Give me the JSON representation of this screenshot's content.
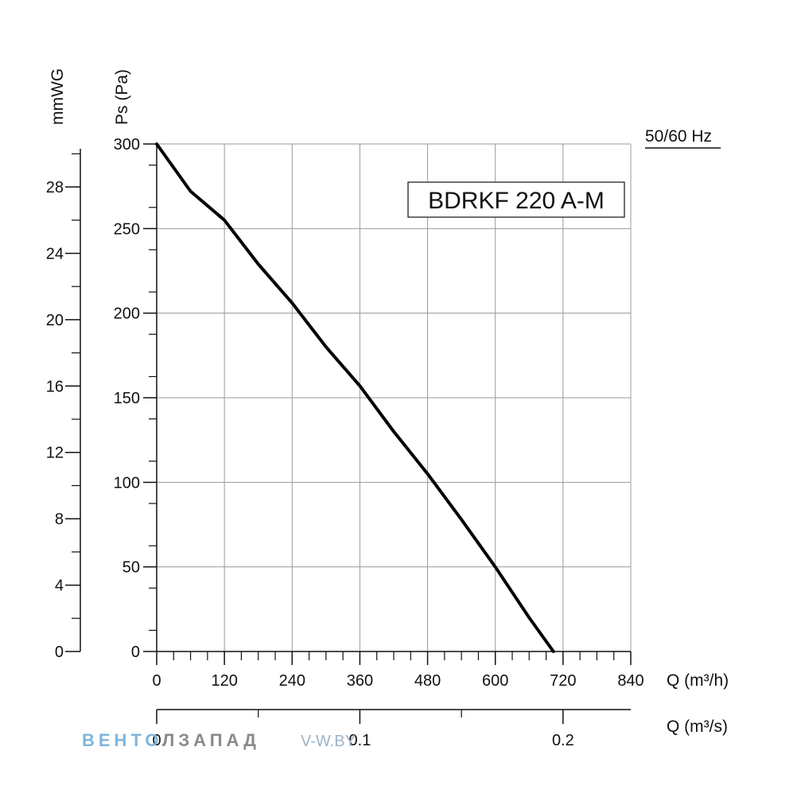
{
  "chart_data": {
    "type": "line",
    "title": "BDRKF 220 A-M",
    "frequency_label": "50/60 Hz",
    "ylabel": "Ps (Pa)",
    "ylabel_secondary": "mmWG",
    "xlabel": "Q (m³/h)",
    "xlabel_secondary": "Q (m³/s)",
    "xlim": [
      0,
      840
    ],
    "ylim": [
      0,
      300
    ],
    "x_ticks": [
      "0",
      "120",
      "240",
      "360",
      "480",
      "600",
      "720",
      "840"
    ],
    "y_ticks": [
      "0",
      "50",
      "100",
      "150",
      "200",
      "250",
      "300"
    ],
    "y2_ticks": [
      "0",
      "4",
      "8",
      "12",
      "16",
      "20",
      "24",
      "28"
    ],
    "x2_ticks": [
      "0",
      "0.1",
      "0.2"
    ],
    "grid": true,
    "series": [
      {
        "name": "",
        "x": [
          0,
          60,
          120,
          180,
          240,
          300,
          360,
          420,
          480,
          540,
          600,
          660,
          703
        ],
        "y": [
          300,
          272,
          255,
          229,
          206,
          180,
          157,
          130,
          105,
          78,
          50,
          20,
          0
        ]
      }
    ]
  },
  "watermark": {
    "brand_part1": "ВЕНТО",
    "brand_part2": "ЛЗАПАД",
    "url": "V-W.BY"
  }
}
